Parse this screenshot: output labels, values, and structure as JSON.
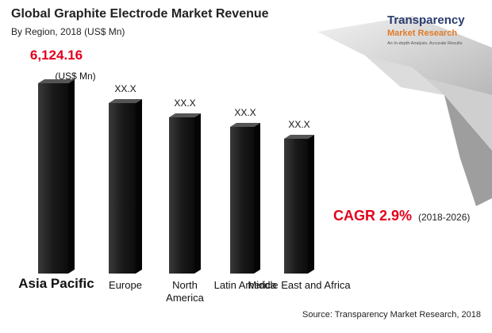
{
  "chart_data": {
    "type": "bar",
    "title": "Global Graphite Electrode Market Revenue",
    "subtitle": "By Region, 2018 (US$ Mn)",
    "categories": [
      "Asia Pacific",
      "Europe",
      "North America",
      "Latin America",
      "Middle East and Africa"
    ],
    "values": [
      6124.16,
      5486,
      5027,
      4721,
      4338
    ],
    "value_labels": [
      "6,124.16",
      "XX.X",
      "XX.X",
      "XX.X",
      "XX.X"
    ],
    "unit_label": "(US$ Mn)",
    "color": "#1e1e1e",
    "annotation": {
      "text": "CAGR 2.9%",
      "period": "(2018-2026)"
    },
    "source": "Source: Transparency Market Research, 2018"
  },
  "logo": {
    "name": "Transparency",
    "sub": "Market Research",
    "tagline": "An In-depth Analysis. Accurate Results"
  }
}
